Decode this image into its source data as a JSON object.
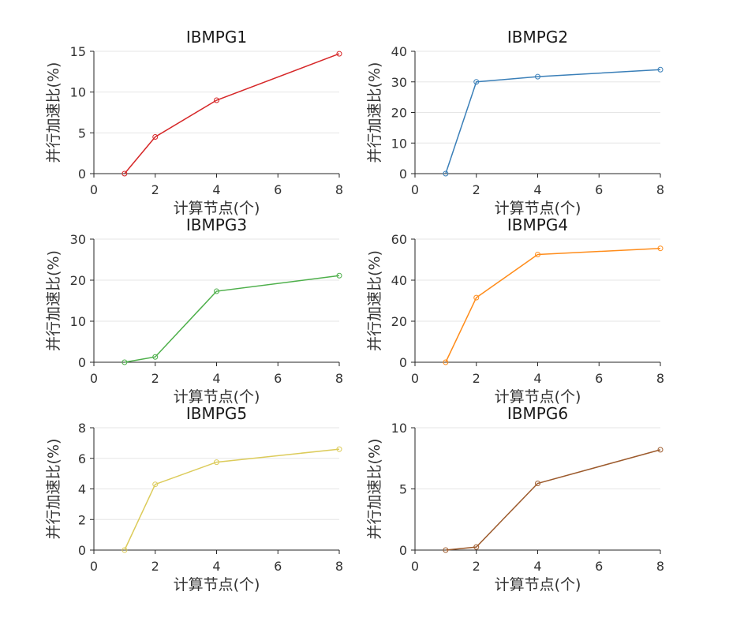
{
  "chart_data": [
    {
      "type": "line",
      "title": "IBMPG1",
      "xlabel": "计算节点(个)",
      "ylabel": "并行加速比(%)",
      "color": "#d62728",
      "x": [
        1,
        2,
        4,
        8
      ],
      "y": [
        0,
        4.5,
        9.0,
        14.7
      ],
      "xlim": [
        0,
        8
      ],
      "ylim": [
        0,
        15
      ],
      "xticks": [
        0,
        2,
        4,
        6,
        8
      ],
      "yticks": [
        0,
        5,
        10,
        15
      ],
      "grid": true
    },
    {
      "type": "line",
      "title": "IBMPG2",
      "xlabel": "计算节点(个)",
      "ylabel": "并行加速比(%)",
      "color": "#3a7fb8",
      "x": [
        1,
        2,
        4,
        8
      ],
      "y": [
        0,
        30.0,
        31.7,
        34.0
      ],
      "xlim": [
        0,
        8
      ],
      "ylim": [
        0,
        40
      ],
      "xticks": [
        0,
        2,
        4,
        6,
        8
      ],
      "yticks": [
        0,
        10,
        20,
        30,
        40
      ],
      "grid": true
    },
    {
      "type": "line",
      "title": "IBMPG3",
      "xlabel": "计算节点(个)",
      "ylabel": "并行加速比(%)",
      "color": "#4daf4a",
      "x": [
        1,
        2,
        4,
        8
      ],
      "y": [
        0,
        1.3,
        17.3,
        21.1
      ],
      "xlim": [
        0,
        8
      ],
      "ylim": [
        0,
        30
      ],
      "xticks": [
        0,
        2,
        4,
        6,
        8
      ],
      "yticks": [
        0,
        10,
        20,
        30
      ],
      "grid": true
    },
    {
      "type": "line",
      "title": "IBMPG4",
      "xlabel": "计算节点(个)",
      "ylabel": "并行加速比(%)",
      "color": "#ff8c1a",
      "x": [
        1,
        2,
        4,
        8
      ],
      "y": [
        0,
        31.5,
        52.5,
        55.5
      ],
      "xlim": [
        0,
        8
      ],
      "ylim": [
        0,
        60
      ],
      "xticks": [
        0,
        2,
        4,
        6,
        8
      ],
      "yticks": [
        0,
        20,
        40,
        60
      ],
      "grid": true
    },
    {
      "type": "line",
      "title": "IBMPG5",
      "xlabel": "计算节点(个)",
      "ylabel": "并行加速比(%)",
      "color": "#dccb5a",
      "x": [
        1,
        2,
        4,
        8
      ],
      "y": [
        0,
        4.3,
        5.75,
        6.6
      ],
      "xlim": [
        0,
        8
      ],
      "ylim": [
        0,
        8
      ],
      "xticks": [
        0,
        2,
        4,
        6,
        8
      ],
      "yticks": [
        0,
        2,
        4,
        6,
        8
      ],
      "grid": true
    },
    {
      "type": "line",
      "title": "IBMPG6",
      "xlabel": "计算节点(个)",
      "ylabel": "并行加速比(%)",
      "color": "#9c5a2c",
      "x": [
        1,
        2,
        4,
        8
      ],
      "y": [
        0,
        0.25,
        5.45,
        8.2
      ],
      "xlim": [
        0,
        8
      ],
      "ylim": [
        0,
        10
      ],
      "xticks": [
        0,
        2,
        4,
        6,
        8
      ],
      "yticks": [
        0,
        5,
        10
      ],
      "grid": true
    }
  ]
}
